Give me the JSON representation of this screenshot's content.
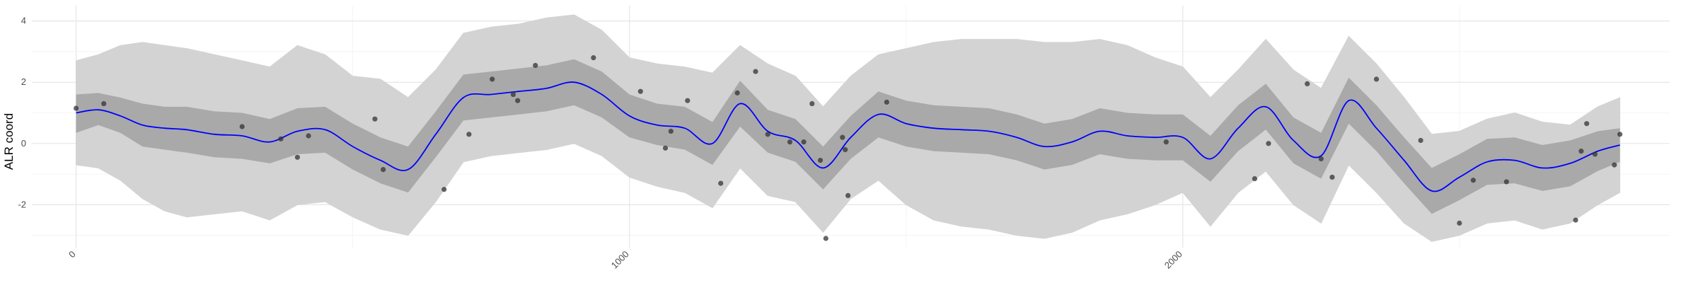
{
  "chart_data": {
    "type": "line",
    "title": "",
    "xlabel": "",
    "ylabel": "ALR coord",
    "xlim": [
      -80,
      2880
    ],
    "ylim": [
      -3.4,
      4.5
    ],
    "x_ticks": [
      0,
      1000,
      2000
    ],
    "x_tick_labels": [
      "0",
      "1000",
      "2000"
    ],
    "y_ticks": [
      -2,
      0,
      2,
      4
    ],
    "y_tick_labels": [
      "-2",
      "0",
      "2",
      "4"
    ],
    "grid": true,
    "legend": "none",
    "colors": {
      "mean_line": "#0000ff",
      "inner_band": "#a9a9a9",
      "outer_band": "#d3d3d3",
      "points": "#333333",
      "grid_major": "#e6e6e6",
      "grid_minor": "#f2f2f2"
    },
    "series": [
      {
        "kind": "mean",
        "x": [
          0,
          40,
          80,
          120,
          160,
          200,
          250,
          300,
          350,
          400,
          450,
          500,
          550,
          600,
          650,
          700,
          750,
          800,
          850,
          900,
          950,
          1000,
          1050,
          1100,
          1150,
          1200,
          1250,
          1300,
          1350,
          1400,
          1450,
          1500,
          1550,
          1600,
          1650,
          1700,
          1750,
          1800,
          1850,
          1900,
          1950,
          2000,
          2050,
          2100,
          2150,
          2200,
          2250,
          2300,
          2350,
          2400,
          2450,
          2500,
          2550,
          2600,
          2650,
          2700,
          2750,
          2790
        ],
        "y": [
          1.0,
          1.1,
          0.9,
          0.6,
          0.5,
          0.45,
          0.3,
          0.25,
          0.05,
          0.4,
          0.45,
          -0.1,
          -0.55,
          -0.85,
          0.3,
          1.5,
          1.6,
          1.7,
          1.8,
          2.0,
          1.6,
          0.9,
          0.6,
          0.5,
          0.0,
          1.3,
          0.4,
          0.1,
          -0.8,
          0.2,
          0.95,
          0.65,
          0.5,
          0.45,
          0.4,
          0.2,
          -0.1,
          0.05,
          0.4,
          0.25,
          0.2,
          0.2,
          -0.5,
          0.5,
          1.2,
          0.1,
          -0.4,
          1.4,
          0.5,
          -0.55,
          -1.55,
          -1.1,
          -0.6,
          -0.55,
          -0.8,
          -0.65,
          -0.25,
          -0.05
        ]
      },
      {
        "kind": "inner_band",
        "x": [
          0,
          40,
          80,
          120,
          160,
          200,
          250,
          300,
          350,
          400,
          450,
          500,
          550,
          600,
          650,
          700,
          750,
          800,
          850,
          900,
          950,
          1000,
          1050,
          1100,
          1150,
          1200,
          1250,
          1300,
          1350,
          1400,
          1450,
          1500,
          1550,
          1600,
          1650,
          1700,
          1750,
          1800,
          1850,
          1900,
          1950,
          2000,
          2050,
          2100,
          2150,
          2200,
          2250,
          2300,
          2350,
          2400,
          2450,
          2500,
          2550,
          2600,
          2650,
          2700,
          2750,
          2790
        ],
        "lower": [
          0.35,
          0.6,
          0.35,
          -0.1,
          -0.2,
          -0.3,
          -0.45,
          -0.5,
          -0.65,
          -0.35,
          -0.3,
          -0.85,
          -1.3,
          -1.6,
          -0.45,
          0.75,
          0.85,
          0.95,
          1.05,
          1.25,
          0.85,
          0.2,
          -0.05,
          -0.2,
          -0.7,
          0.55,
          -0.3,
          -0.6,
          -1.5,
          -0.5,
          0.2,
          -0.1,
          -0.25,
          -0.3,
          -0.35,
          -0.55,
          -0.85,
          -0.7,
          -0.35,
          -0.5,
          -0.55,
          -0.55,
          -1.25,
          -0.25,
          0.45,
          -0.65,
          -1.15,
          0.65,
          -0.25,
          -1.3,
          -2.3,
          -1.85,
          -1.35,
          -1.3,
          -1.55,
          -1.4,
          -0.9,
          -0.6
        ],
        "upper": [
          1.6,
          1.65,
          1.5,
          1.3,
          1.2,
          1.2,
          1.05,
          1.0,
          0.8,
          1.15,
          1.2,
          0.65,
          0.2,
          -0.1,
          1.05,
          2.25,
          2.35,
          2.45,
          2.55,
          2.75,
          2.35,
          1.6,
          1.3,
          1.2,
          0.7,
          2.05,
          1.1,
          0.8,
          -0.1,
          0.9,
          1.7,
          1.4,
          1.25,
          1.2,
          1.15,
          0.95,
          0.65,
          0.8,
          1.15,
          1.0,
          0.95,
          0.95,
          0.25,
          1.25,
          1.95,
          0.85,
          0.35,
          2.15,
          1.25,
          0.2,
          -0.8,
          -0.35,
          0.15,
          0.2,
          -0.05,
          0.1,
          0.4,
          0.5
        ]
      },
      {
        "kind": "outer_band",
        "x": [
          0,
          40,
          80,
          120,
          160,
          200,
          250,
          300,
          350,
          400,
          450,
          500,
          550,
          600,
          650,
          700,
          750,
          800,
          850,
          900,
          950,
          1000,
          1050,
          1100,
          1150,
          1200,
          1250,
          1300,
          1350,
          1400,
          1450,
          1500,
          1550,
          1600,
          1650,
          1700,
          1750,
          1800,
          1850,
          1900,
          1950,
          2000,
          2050,
          2100,
          2150,
          2200,
          2250,
          2300,
          2350,
          2400,
          2450,
          2500,
          2550,
          2600,
          2650,
          2700,
          2750,
          2790
        ],
        "lower": [
          -0.7,
          -0.8,
          -1.2,
          -1.8,
          -2.2,
          -2.4,
          -2.3,
          -2.2,
          -2.5,
          -2.0,
          -1.9,
          -2.4,
          -2.8,
          -3.0,
          -1.9,
          -0.6,
          -0.4,
          -0.3,
          -0.2,
          0.0,
          -0.4,
          -1.1,
          -1.4,
          -1.6,
          -2.1,
          -0.8,
          -1.7,
          -1.9,
          -2.9,
          -1.8,
          -1.2,
          -2.0,
          -2.5,
          -2.7,
          -2.8,
          -3.0,
          -3.1,
          -2.9,
          -2.5,
          -2.3,
          -2.0,
          -1.6,
          -2.7,
          -1.6,
          -0.9,
          -2.0,
          -2.6,
          -0.7,
          -1.6,
          -2.6,
          -3.2,
          -3.0,
          -2.6,
          -2.5,
          -2.8,
          -2.6,
          -2.0,
          -1.6
        ],
        "upper": [
          2.7,
          2.9,
          3.2,
          3.3,
          3.2,
          3.1,
          2.9,
          2.7,
          2.5,
          3.2,
          2.9,
          2.2,
          2.1,
          1.5,
          2.4,
          3.6,
          3.8,
          3.9,
          4.1,
          4.2,
          3.7,
          2.8,
          2.6,
          2.5,
          2.3,
          3.2,
          2.6,
          2.2,
          1.2,
          2.2,
          2.9,
          3.1,
          3.3,
          3.4,
          3.4,
          3.4,
          3.3,
          3.3,
          3.4,
          3.2,
          2.8,
          2.5,
          1.5,
          2.4,
          3.4,
          2.4,
          1.8,
          3.5,
          2.6,
          1.5,
          0.3,
          0.4,
          0.8,
          1.0,
          0.7,
          0.6,
          1.2,
          1.5
        ]
      },
      {
        "kind": "points",
        "x": [
          0,
          50,
          300,
          370,
          400,
          420,
          540,
          555,
          665,
          710,
          752,
          790,
          798,
          830,
          935,
          1020,
          1065,
          1075,
          1105,
          1165,
          1195,
          1228,
          1250,
          1290,
          1315,
          1330,
          1345,
          1355,
          1385,
          1390,
          1395,
          1465,
          1970,
          2130,
          2155,
          2225,
          2250,
          2270,
          2350,
          2430,
          2500,
          2525,
          2585,
          2710,
          2720,
          2745,
          2780
        ],
        "y": [
          1.15,
          1.3,
          0.55,
          0.15,
          -0.45,
          0.25,
          0.8,
          -0.85,
          -1.5,
          0.3,
          2.1,
          1.6,
          1.4,
          2.55,
          2.8,
          1.7,
          -0.15,
          0.4,
          1.4,
          -1.3,
          1.65,
          2.35,
          0.3,
          0.05,
          0.05,
          1.3,
          -0.55,
          -3.1,
          0.2,
          -0.2,
          -1.7,
          1.35,
          0.05,
          -1.15,
          0.0,
          1.95,
          -0.5,
          -1.1,
          2.1,
          0.1,
          -2.6,
          -1.2,
          -1.25,
          -2.5,
          -0.25,
          -0.35,
          -0.7
        ]
      },
      {
        "kind": "points_extra",
        "x": [
          2730,
          2790
        ],
        "y": [
          0.65,
          0.3
        ]
      }
    ]
  }
}
